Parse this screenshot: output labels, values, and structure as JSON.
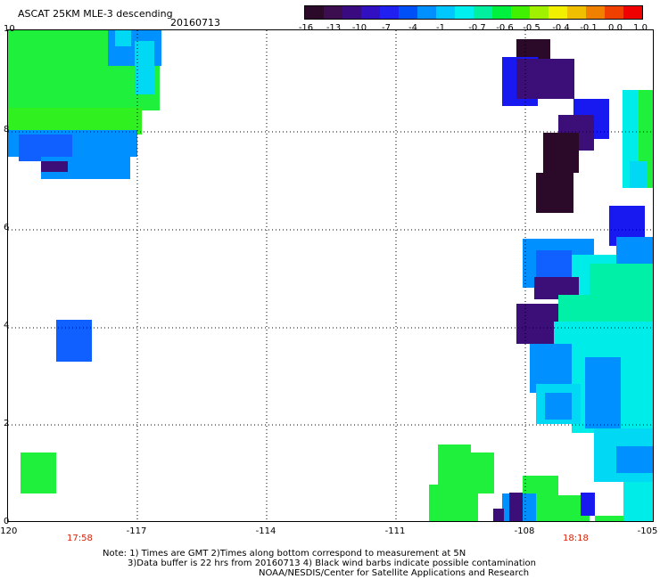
{
  "header": {
    "title": "ASCAT 25KM MLE-3 descending",
    "date": "20160713"
  },
  "colorbar": {
    "labels": [
      "-16",
      "-13",
      "-10",
      "-7",
      "-4",
      "-1",
      "-0.7",
      "-0.6",
      "-0.5",
      "-0.4",
      "-0.1",
      "0.0",
      "1.0"
    ],
    "colors": [
      "#2a0a28",
      "#3c0e50",
      "#3a0a80",
      "#3010c0",
      "#2020f0",
      "#0050f8",
      "#0090ff",
      "#00c8ff",
      "#00f0f0",
      "#00f0a0",
      "#00f040",
      "#40f000",
      "#a0f000",
      "#f0f000",
      "#f0c000",
      "#f08000",
      "#f04000",
      "#f00000"
    ]
  },
  "axes": {
    "y_ticks": [
      "0",
      "2",
      "4",
      "6",
      "8",
      "10"
    ],
    "x_ticks": [
      "-120",
      "-117",
      "-114",
      "-111",
      "-108",
      "-105"
    ],
    "times": [
      "17:58",
      "18:18"
    ]
  },
  "footer": {
    "line1": "Note: 1) Times are GMT 2)Times along bottom correspond to measurement at 5N",
    "line2": "3)Data buffer is 22 hrs from 20160713 4) Black wind barbs indicate possible contamination",
    "line3": "NOAA/NESDIS/Center for Satellite Applications and Research"
  }
}
